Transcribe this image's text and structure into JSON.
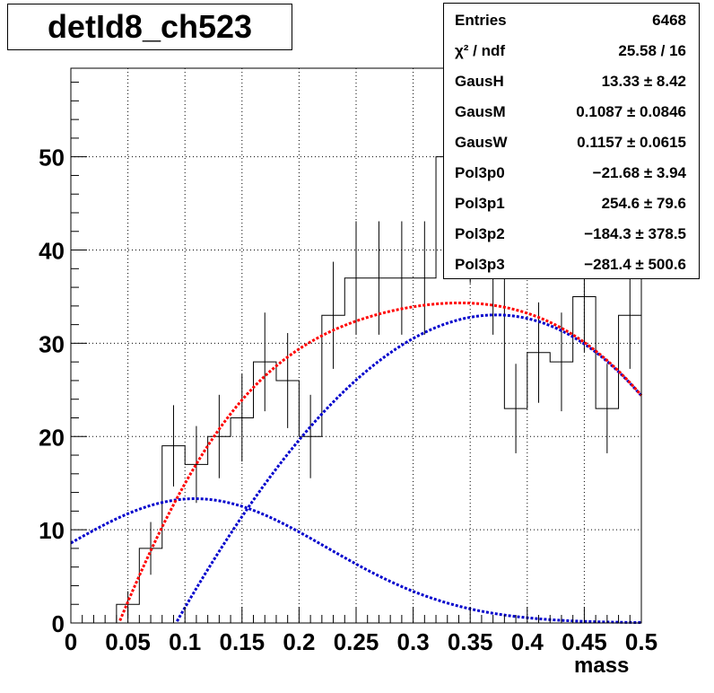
{
  "chart_data": {
    "type": "histogram",
    "title": "detId8_ch523",
    "xlabel": "mass",
    "ylabel": "",
    "xlim": [
      0,
      0.5
    ],
    "ylim": [
      0,
      59.5
    ],
    "grid": true,
    "x_ticks": [
      "0",
      "0.05",
      "0.1",
      "0.15",
      "0.2",
      "0.25",
      "0.3",
      "0.35",
      "0.4",
      "0.45",
      "0.5"
    ],
    "y_ticks": [
      "0",
      "10",
      "20",
      "30",
      "40",
      "50"
    ],
    "bin_width": 0.02,
    "bins": [
      {
        "x": 0.01,
        "y": 0
      },
      {
        "x": 0.03,
        "y": 0
      },
      {
        "x": 0.05,
        "y": 2
      },
      {
        "x": 0.07,
        "y": 8
      },
      {
        "x": 0.09,
        "y": 19
      },
      {
        "x": 0.11,
        "y": 17
      },
      {
        "x": 0.13,
        "y": 20
      },
      {
        "x": 0.15,
        "y": 22
      },
      {
        "x": 0.17,
        "y": 28
      },
      {
        "x": 0.19,
        "y": 26
      },
      {
        "x": 0.21,
        "y": 20
      },
      {
        "x": 0.23,
        "y": 33
      },
      {
        "x": 0.25,
        "y": 37
      },
      {
        "x": 0.27,
        "y": 37
      },
      {
        "x": 0.29,
        "y": 37
      },
      {
        "x": 0.31,
        "y": 37
      },
      {
        "x": 0.33,
        "y": 50
      },
      {
        "x": 0.35,
        "y": 43
      },
      {
        "x": 0.37,
        "y": 37
      },
      {
        "x": 0.39,
        "y": 23
      },
      {
        "x": 0.41,
        "y": 29
      },
      {
        "x": 0.43,
        "y": 28
      },
      {
        "x": 0.45,
        "y": 35
      },
      {
        "x": 0.47,
        "y": 23
      },
      {
        "x": 0.49,
        "y": 33
      }
    ],
    "fit": {
      "GausH": 13.33,
      "GausM": 0.1087,
      "GausW": 0.1157,
      "Pol3p0": -21.68,
      "Pol3p1": 254.6,
      "Pol3p2": -184.3,
      "Pol3p3": -281.4,
      "total_color": "#ff0000",
      "component_color": "#0000cc"
    },
    "stats": [
      {
        "label": "Entries",
        "value": "6468"
      },
      {
        "label": "χ² / ndf",
        "value": "25.58 / 16"
      },
      {
        "label": "GausH",
        "value": "13.33 ± 8.42"
      },
      {
        "label": "GausM",
        "value": "0.1087 ± 0.0846"
      },
      {
        "label": "GausW",
        "value": "0.1157 ± 0.0615"
      },
      {
        "label": "Pol3p0",
        "value": "−21.68 ± 3.94"
      },
      {
        "label": "Pol3p1",
        "value": "254.6 ± 79.6"
      },
      {
        "label": "Pol3p2",
        "value": "−184.3 ± 378.5"
      },
      {
        "label": "Pol3p3",
        "value": "−281.4 ± 500.6"
      }
    ]
  }
}
